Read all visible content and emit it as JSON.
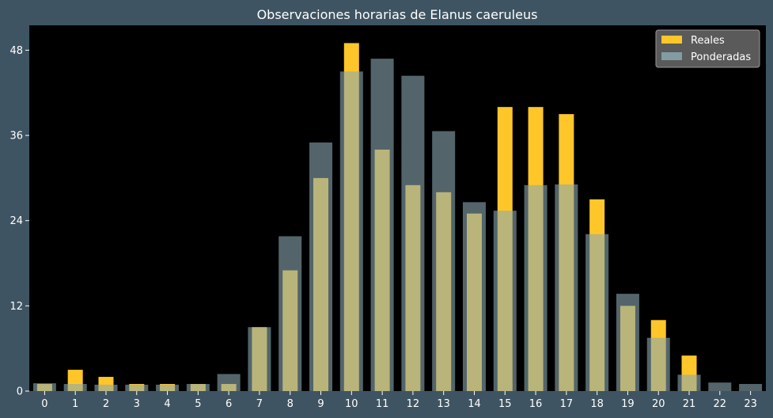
{
  "chart_data": {
    "type": "bar",
    "title": "Observaciones horarias de Elanus caeruleus",
    "xlabel": "",
    "ylabel": "",
    "categories": [
      "0",
      "1",
      "2",
      "3",
      "4",
      "5",
      "6",
      "7",
      "8",
      "9",
      "10",
      "11",
      "12",
      "13",
      "14",
      "15",
      "16",
      "17",
      "18",
      "19",
      "20",
      "21",
      "22",
      "23"
    ],
    "ylim": [
      0,
      51.5
    ],
    "yticks": [
      0,
      12,
      24,
      36,
      48
    ],
    "legend_position": "top-right",
    "series": [
      {
        "name": "Reales",
        "color": "#ffc629",
        "values": [
          1,
          3,
          2,
          1,
          1,
          1,
          1,
          9,
          17,
          30,
          49,
          34,
          29,
          28,
          25,
          40,
          40,
          39,
          27,
          12,
          10,
          5,
          0,
          0
        ]
      },
      {
        "name": "Ponderadas",
        "color": "#8ba8b0",
        "values": [
          1.1,
          1.0,
          0.9,
          0.9,
          0.9,
          1.0,
          2.4,
          9.0,
          21.8,
          35.0,
          45.0,
          46.8,
          44.4,
          36.6,
          26.6,
          25.4,
          29.0,
          29.1,
          22.1,
          13.7,
          7.5,
          2.3,
          1.2,
          1.0
        ]
      }
    ]
  }
}
